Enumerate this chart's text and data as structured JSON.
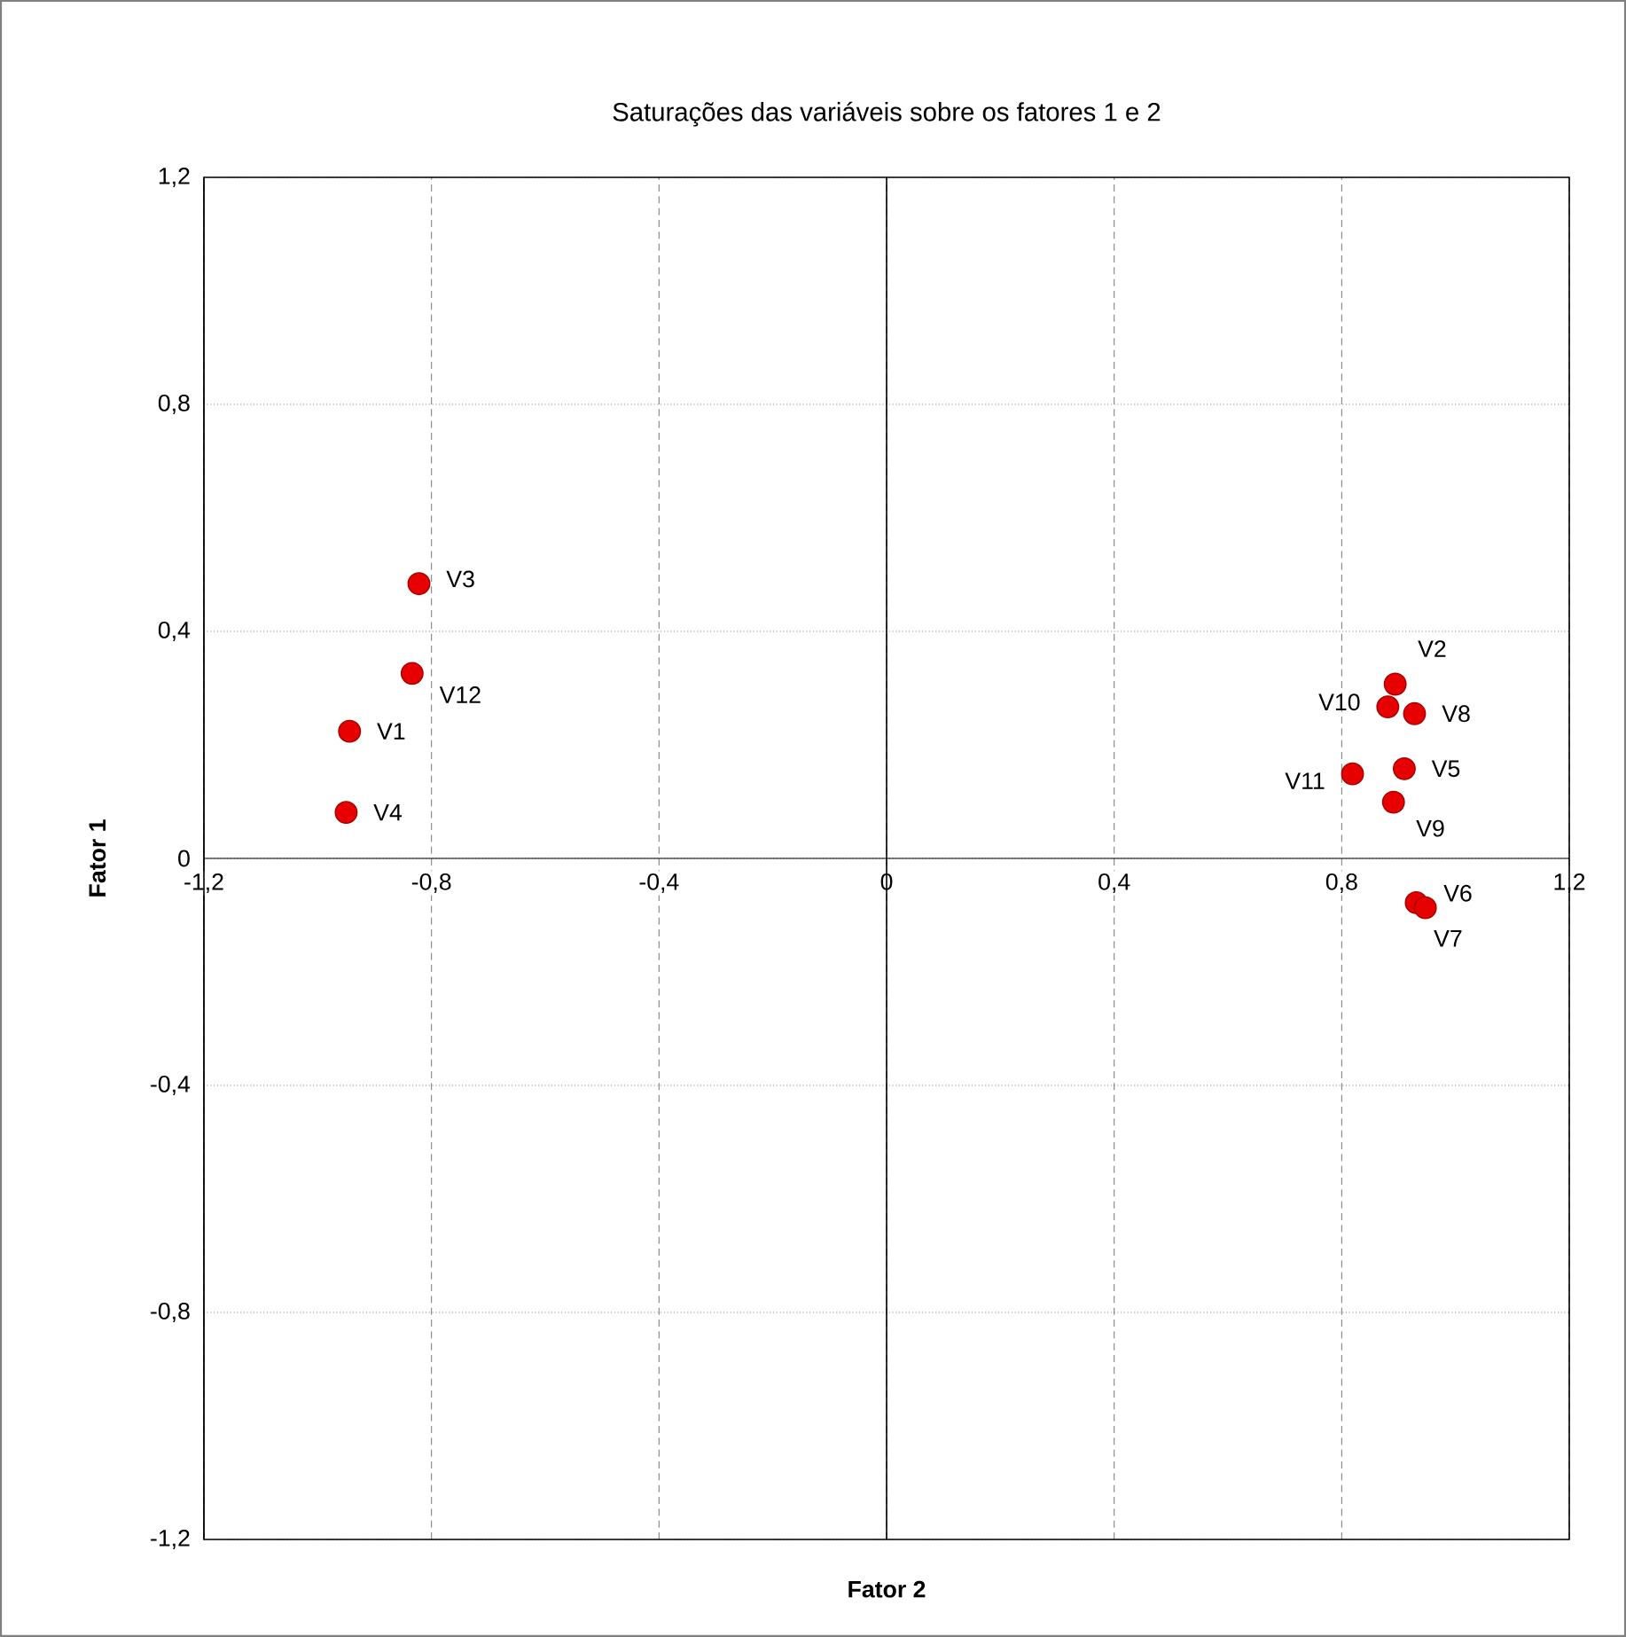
{
  "chart_data": {
    "type": "scatter",
    "title": "Saturações das variáveis sobre os fatores 1 e 2",
    "xlabel": "Fator 2",
    "ylabel": "Fator 1",
    "x": [
      -0.944,
      0.894,
      -0.822,
      -0.95,
      0.91,
      0.931,
      0.947,
      0.928,
      0.891,
      0.881,
      0.819,
      -0.834
    ],
    "series": [
      {
        "color": "#e60000",
        "values": [
          0.224,
          0.307,
          0.484,
          0.081,
          0.158,
          -0.078,
          -0.087,
          0.255,
          0.099,
          0.267,
          0.149,
          0.326
        ]
      }
    ],
    "annotations": [
      {
        "text": "V1",
        "x": -0.944,
        "y": 0.224
      },
      {
        "text": "V2",
        "x": 0.894,
        "y": 0.307
      },
      {
        "text": "V3",
        "x": -0.822,
        "y": 0.484
      },
      {
        "text": "V4",
        "x": -0.95,
        "y": 0.081
      },
      {
        "text": "V5",
        "x": 0.91,
        "y": 0.158
      },
      {
        "text": "V6",
        "x": 0.931,
        "y": -0.078
      },
      {
        "text": "V7",
        "x": 0.947,
        "y": -0.087
      },
      {
        "text": "V8",
        "x": 0.928,
        "y": 0.255
      },
      {
        "text": "V9",
        "x": 0.891,
        "y": 0.099
      },
      {
        "text": "V10",
        "x": 0.881,
        "y": 0.267
      },
      {
        "text": "V11",
        "x": 0.819,
        "y": 0.149
      },
      {
        "text": "V12",
        "x": -0.834,
        "y": 0.326
      }
    ],
    "xlim": [
      -1.2,
      1.2
    ],
    "ylim": [
      -1.2,
      1.2
    ],
    "xticks": [
      {
        "value": -1.2,
        "label": "-1,2"
      },
      {
        "value": -0.8,
        "label": "-0,8"
      },
      {
        "value": -0.4,
        "label": "-0,4"
      },
      0,
      {
        "value": 0.4,
        "label": "0,4"
      },
      {
        "value": 0.8,
        "label": "0,8"
      },
      {
        "value": 1.2,
        "label": "1,2"
      }
    ],
    "yticks": [
      {
        "value": -1.2,
        "label": "-1,2"
      },
      {
        "value": -0.8,
        "label": "-0,8"
      },
      {
        "value": -0.4,
        "label": "-0,4"
      },
      0,
      {
        "value": 0.4,
        "label": "0,4"
      },
      {
        "value": 0.8,
        "label": "0,8"
      },
      {
        "value": 1.2,
        "label": "1,2"
      }
    ],
    "grid": true,
    "marker": "circle"
  }
}
